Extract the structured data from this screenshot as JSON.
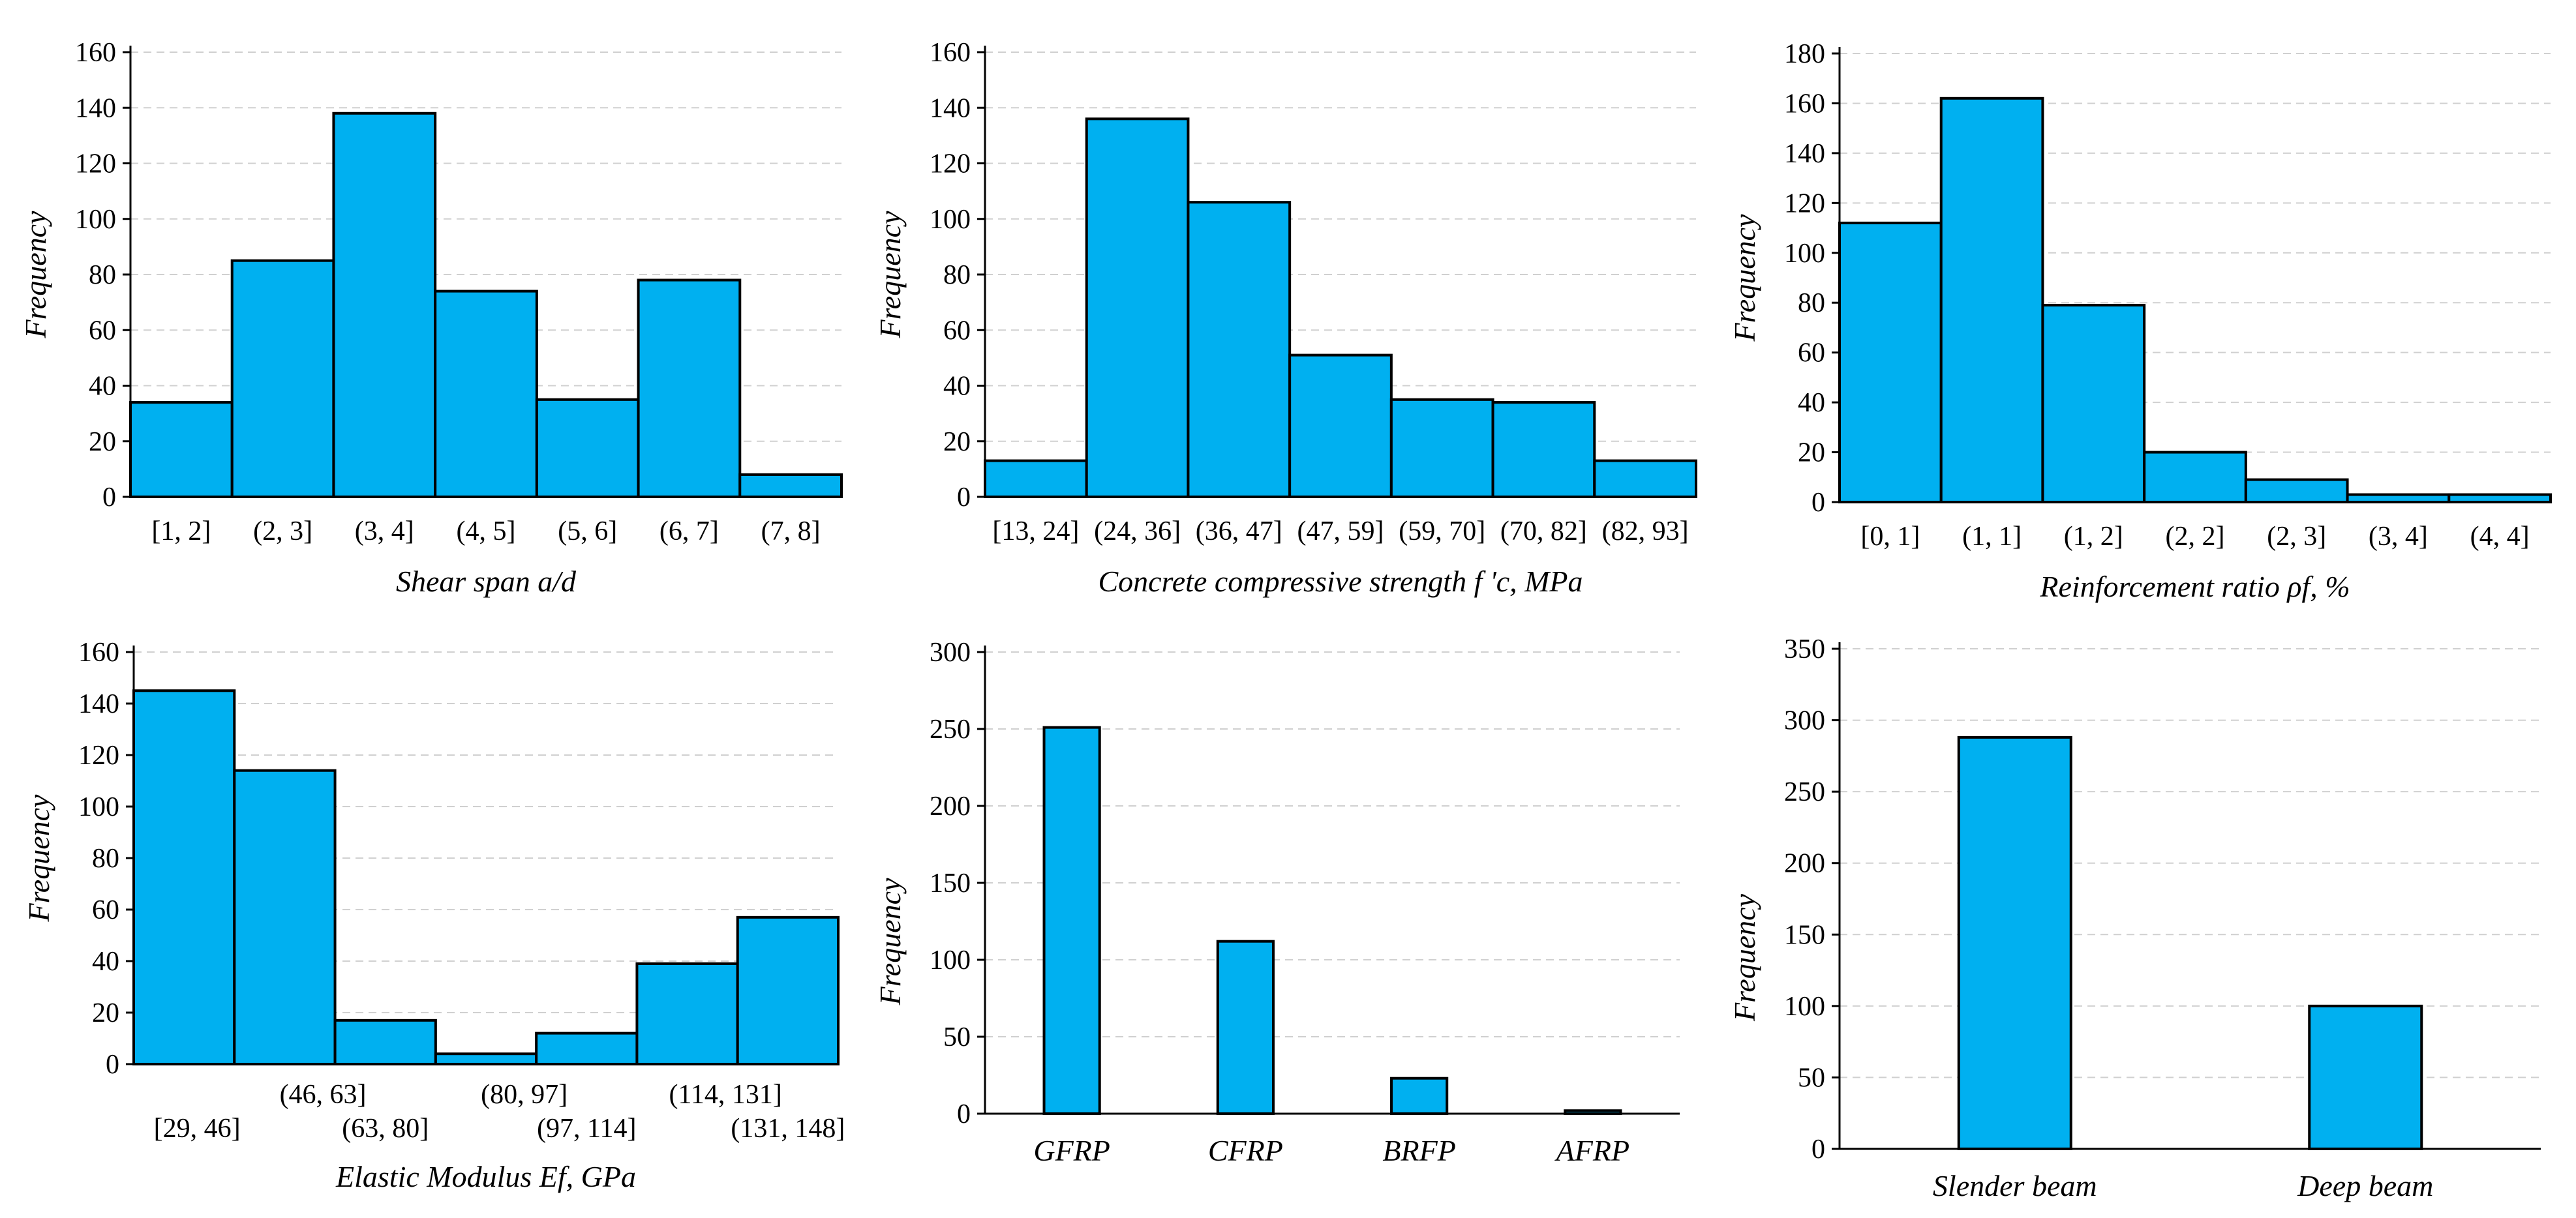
{
  "chart_data": [
    {
      "type": "bar",
      "title": "",
      "ylabel": "Frequency",
      "xlabel": "Shear span a/d",
      "ylim": [
        0,
        160
      ],
      "ytick_step": 20,
      "grid": true,
      "histogram": true,
      "categories": [
        "[1, 2]",
        "(2, 3]",
        "(3, 4]",
        "(4, 5]",
        "(5, 6]",
        "(6, 7]",
        "(7, 8]"
      ],
      "values": [
        34,
        85,
        138,
        74,
        35,
        78,
        8
      ]
    },
    {
      "type": "bar",
      "title": "",
      "ylabel": "Frequency",
      "xlabel": "Concrete compressive strength f 'c, MPa",
      "ylim": [
        0,
        160
      ],
      "ytick_step": 20,
      "grid": true,
      "histogram": true,
      "categories": [
        "[13, 24]",
        "(24, 36]",
        "(36, 47]",
        "(47, 59]",
        "(59, 70]",
        "(70, 82]",
        "(82, 93]"
      ],
      "values": [
        13,
        136,
        106,
        51,
        35,
        34,
        13
      ]
    },
    {
      "type": "bar",
      "title": "",
      "ylabel": "Frequency",
      "xlabel": "Reinforcement ratio ρf, %",
      "ylim": [
        0,
        180
      ],
      "ytick_step": 20,
      "grid": true,
      "histogram": true,
      "categories": [
        "[0, 1]",
        "(1, 1]",
        "(1, 2]",
        "(2, 2]",
        "(2, 3]",
        "(3, 4]",
        "(4, 4]"
      ],
      "values": [
        112,
        162,
        79,
        20,
        9,
        3,
        3
      ]
    },
    {
      "type": "bar",
      "title": "",
      "ylabel": "Frequency",
      "xlabel": "Elastic Modulus Ef, GPa",
      "ylim": [
        0,
        160
      ],
      "ytick_step": 20,
      "grid": true,
      "histogram": true,
      "staggered_labels": true,
      "categories": [
        "[29, 46]",
        "(46, 63]",
        "(63, 80]",
        "(80, 97]",
        "(97, 114]",
        "(114, 131]",
        "(131, 148]"
      ],
      "values": [
        145,
        114,
        17,
        4,
        12,
        39,
        57
      ]
    },
    {
      "type": "bar",
      "title": "",
      "ylabel": "Frequency",
      "xlabel": "",
      "ylim": [
        0,
        300
      ],
      "ytick_step": 50,
      "grid": true,
      "histogram": false,
      "italic_categories": true,
      "categories": [
        "GFRP",
        "CFRP",
        "BRFP",
        "AFRP"
      ],
      "values": [
        251,
        112,
        23,
        2
      ]
    },
    {
      "type": "bar",
      "title": "",
      "ylabel": "Frequency",
      "xlabel": "",
      "ylim": [
        0,
        350
      ],
      "ytick_step": 50,
      "grid": true,
      "histogram": false,
      "italic_categories": true,
      "categories": [
        "Slender beam",
        "Deep beam"
      ],
      "values": [
        288,
        100
      ]
    }
  ]
}
